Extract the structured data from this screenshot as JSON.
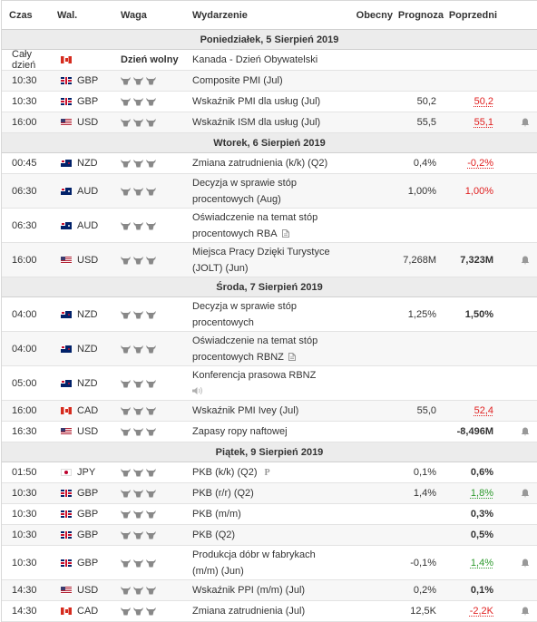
{
  "header": {
    "time": "Czas",
    "currency": "Wal.",
    "importance": "Waga",
    "event": "Wydarzenie",
    "actual": "Obecny",
    "forecast": "Prognoza",
    "previous": "Poprzedni"
  },
  "rows": [
    {
      "type": "day",
      "label": "Poniedziałek, 5 Sierpień 2019"
    },
    {
      "type": "holiday",
      "time": "Cały dzień",
      "cur": "CAD",
      "holiday": "Dzień wolny",
      "event": "Kanada - Dzień Obywatelski"
    },
    {
      "type": "ev",
      "time": "10:30",
      "cur": "GBP",
      "event": "Composite PMI (Jul)",
      "actual": "",
      "forecast": "",
      "previous": "",
      "prev_color": "",
      "alert": false,
      "h": 22
    },
    {
      "type": "ev",
      "time": "10:30",
      "cur": "GBP",
      "event": "Wskaźnik PMI dla usług (Jul)",
      "actual": "",
      "forecast": "50,2",
      "previous": "50,2",
      "prev_color": "red-ul",
      "alert": false,
      "h": 22
    },
    {
      "type": "ev",
      "time": "16:00",
      "cur": "USD",
      "event": "Wskaźnik ISM dla usług (Jul)",
      "actual": "",
      "forecast": "55,5",
      "previous": "55,1",
      "prev_color": "red-ul",
      "alert": true,
      "h": 22
    },
    {
      "type": "day",
      "label": "Wtorek, 6 Sierpień 2019"
    },
    {
      "type": "ev",
      "time": "00:45",
      "cur": "NZD",
      "event": "Zmiana zatrudnienia (k/k) (Q2)",
      "actual": "",
      "forecast": "0,4%",
      "previous": "-0,2%",
      "prev_color": "red-ul",
      "alert": false,
      "h": 22
    },
    {
      "type": "ev",
      "time": "06:30",
      "cur": "AUD",
      "event": "Decyzja w sprawie stóp procentowych (Aug)",
      "actual": "",
      "forecast": "1,00%",
      "previous": "1,00%",
      "prev_color": "red",
      "alert": false,
      "h": 37
    },
    {
      "type": "ev",
      "time": "06:30",
      "cur": "AUD",
      "event": "Oświadczenie na temat stóp procentowych RBA",
      "actual": "",
      "forecast": "",
      "previous": "",
      "prev_color": "",
      "alert": false,
      "h": 37,
      "icon": "doc"
    },
    {
      "type": "ev",
      "time": "16:00",
      "cur": "USD",
      "event": "Miejsca Pracy Dzięki Turystyce (JOLT) (Jun)",
      "actual": "",
      "forecast": "7,268M",
      "previous": "7,323M",
      "prev_color": "bold",
      "alert": true,
      "h": 37
    },
    {
      "type": "day",
      "label": "Środa, 7 Sierpień 2019"
    },
    {
      "type": "ev",
      "time": "04:00",
      "cur": "NZD",
      "event": "Decyzja w sprawie stóp procentowych",
      "actual": "",
      "forecast": "1,25%",
      "previous": "1,50%",
      "prev_color": "bold",
      "alert": false,
      "h": 37
    },
    {
      "type": "ev",
      "time": "04:00",
      "cur": "NZD",
      "event": "Oświadczenie na temat stóp procentowych RBNZ",
      "actual": "",
      "forecast": "",
      "previous": "",
      "prev_color": "",
      "alert": false,
      "h": 37,
      "icon": "doc"
    },
    {
      "type": "ev",
      "time": "05:00",
      "cur": "NZD",
      "event": "Konferencja prasowa RBNZ",
      "actual": "",
      "forecast": "",
      "previous": "",
      "prev_color": "",
      "alert": false,
      "h": 37,
      "icon": "speaker"
    },
    {
      "type": "ev",
      "time": "16:00",
      "cur": "CAD",
      "event": "Wskaźnik PMI Ivey (Jul)",
      "actual": "",
      "forecast": "55,0",
      "previous": "52,4",
      "prev_color": "red-ul",
      "alert": false,
      "h": 22
    },
    {
      "type": "ev",
      "time": "16:30",
      "cur": "USD",
      "event": "Zapasy ropy naftowej",
      "actual": "",
      "forecast": "",
      "previous": "-8,496M",
      "prev_color": "bold",
      "alert": true,
      "h": 22
    },
    {
      "type": "day",
      "label": "Piątek, 9 Sierpień 2019"
    },
    {
      "type": "ev",
      "time": "01:50",
      "cur": "JPY",
      "event": "PKB (k/k) (Q2)",
      "actual": "",
      "forecast": "0,1%",
      "previous": "0,6%",
      "prev_color": "bold",
      "alert": false,
      "h": 22,
      "icon": "prelim"
    },
    {
      "type": "ev",
      "time": "10:30",
      "cur": "GBP",
      "event": "PKB (r/r) (Q2)",
      "actual": "",
      "forecast": "1,4%",
      "previous": "1,8%",
      "prev_color": "green-ul",
      "alert": true,
      "h": 22
    },
    {
      "type": "ev",
      "time": "10:30",
      "cur": "GBP",
      "event": "PKB (m/m)",
      "actual": "",
      "forecast": "",
      "previous": "0,3%",
      "prev_color": "bold",
      "alert": false,
      "h": 22
    },
    {
      "type": "ev",
      "time": "10:30",
      "cur": "GBP",
      "event": "PKB (Q2)",
      "actual": "",
      "forecast": "",
      "previous": "0,5%",
      "prev_color": "bold",
      "alert": false,
      "h": 22
    },
    {
      "type": "ev",
      "time": "10:30",
      "cur": "GBP",
      "event": "Produkcja dóbr w fabrykach (m/m) (Jun)",
      "actual": "",
      "forecast": "-0,1%",
      "previous": "1,4%",
      "prev_color": "green-ul",
      "alert": true,
      "h": 37
    },
    {
      "type": "ev",
      "time": "14:30",
      "cur": "USD",
      "event": "Wskaźnik PPI (m/m) (Jul)",
      "actual": "",
      "forecast": "0,2%",
      "previous": "0,1%",
      "prev_color": "bold",
      "alert": false,
      "h": 22
    },
    {
      "type": "ev",
      "time": "14:30",
      "cur": "CAD",
      "event": "Zmiana zatrudnienia (Jul)",
      "actual": "",
      "forecast": "12,5K",
      "previous": "-2,2K",
      "prev_color": "red-ul",
      "alert": true,
      "h": 22
    }
  ]
}
